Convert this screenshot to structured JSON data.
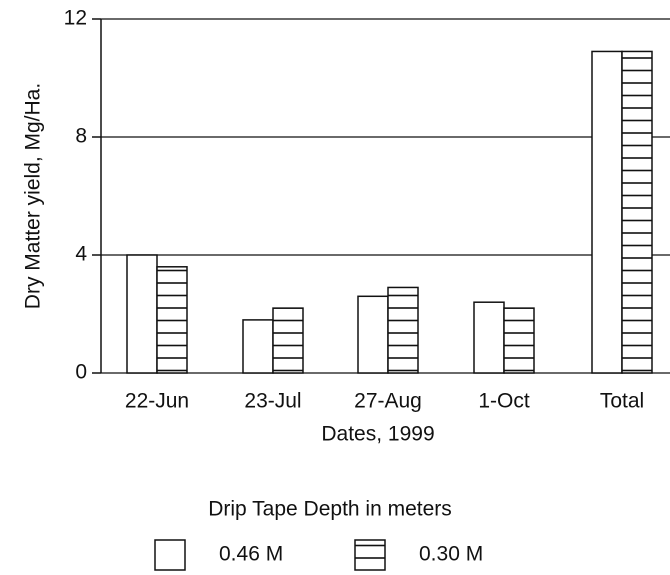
{
  "chart_data": {
    "type": "bar",
    "y_label": "Dry Matter yield, Mg/Ha.",
    "x_label": "Dates, 1999",
    "legend_title": "Drip Tape Depth in meters",
    "categories": [
      "22-Jun",
      "23-Jul",
      "27-Aug",
      "1-Oct",
      "Total"
    ],
    "series": [
      {
        "name": "0.46 M",
        "color": "#ffffff",
        "pattern": "none",
        "values": [
          4.0,
          1.8,
          2.6,
          2.4,
          10.9
        ]
      },
      {
        "name": "0.30 M",
        "color": "#ffffff",
        "pattern": "horizontal-lines",
        "values": [
          3.6,
          2.2,
          2.9,
          2.2,
          10.9
        ]
      }
    ],
    "ylim": [
      0,
      12
    ],
    "yticks": [
      0,
      4,
      8,
      12
    ],
    "grid": true,
    "legend": "bottom"
  }
}
